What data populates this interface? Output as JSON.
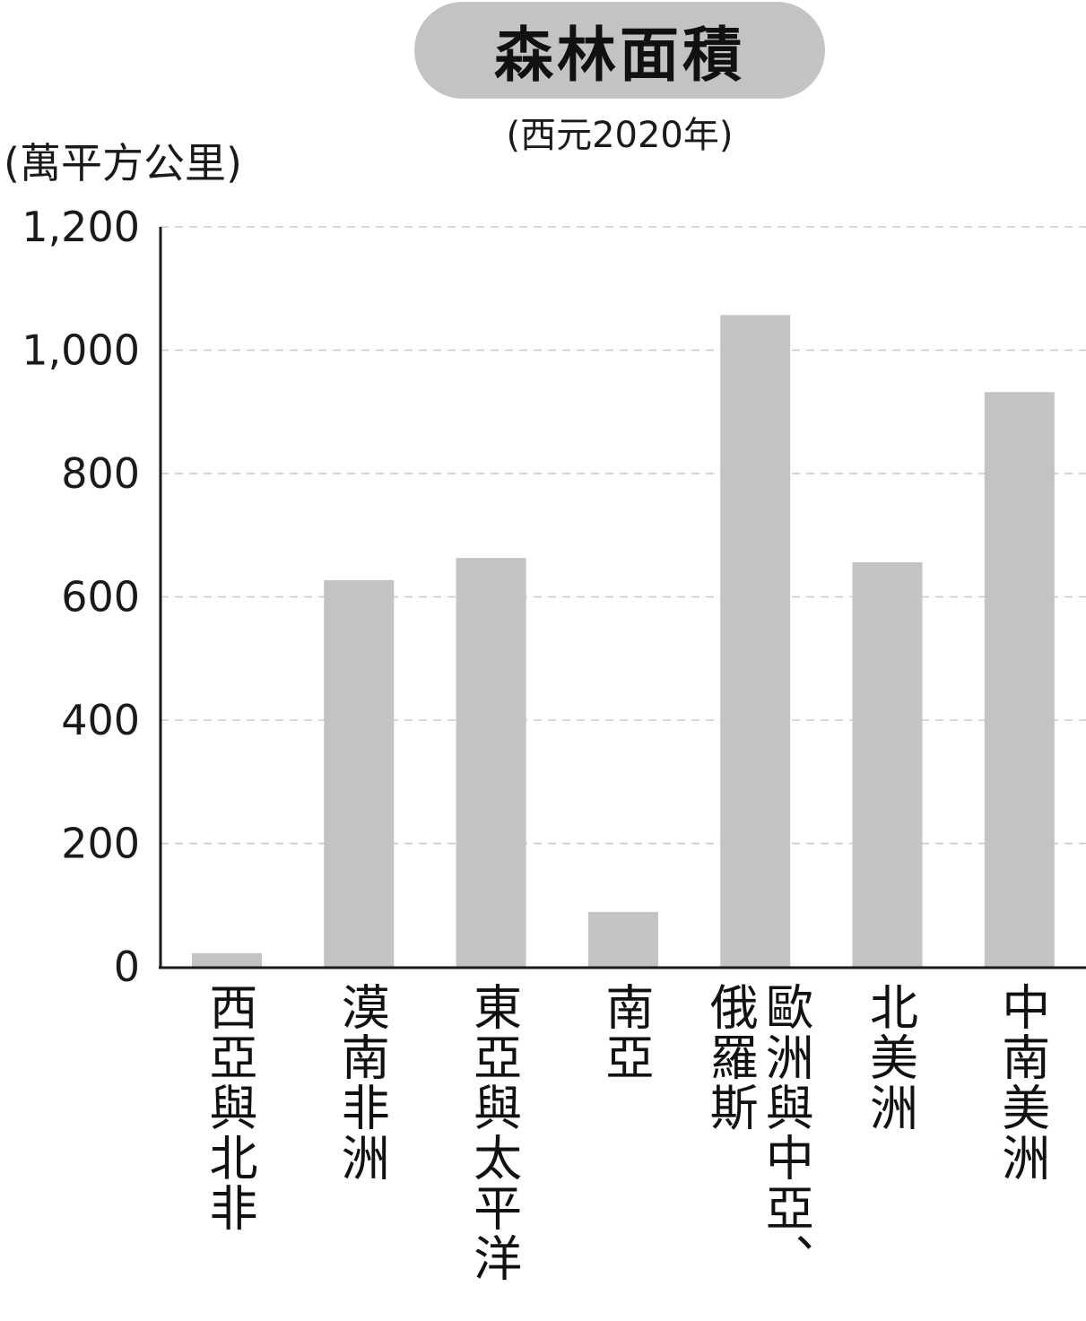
{
  "chart_data": {
    "type": "bar",
    "title": "森林面積",
    "subtitle": "(西元2020年)",
    "ylabel": "(萬平方公里)",
    "ylim": [
      0,
      1200
    ],
    "yticks": [
      "0",
      "200",
      "400",
      "600",
      "800",
      "1,000",
      "1,200"
    ],
    "ytick_values": [
      0,
      200,
      400,
      600,
      800,
      1000,
      1200
    ],
    "grid": true,
    "categories": [
      "西亞與北非",
      "漠南非洲",
      "東亞與太平洋",
      "南亞",
      "歐洲與中亞、俄羅斯",
      "北美洲",
      "中南美洲"
    ],
    "category_display": [
      [
        "西亞與北非"
      ],
      [
        "漠南非洲"
      ],
      [
        "東亞與太平洋"
      ],
      [
        "南亞"
      ],
      [
        "歐洲與中亞、",
        "俄羅斯"
      ],
      [
        "北美洲"
      ],
      [
        "中南美洲"
      ]
    ],
    "values": [
      22,
      627,
      663,
      89,
      1057,
      656,
      932
    ],
    "bar_color": "#c3c3c3"
  }
}
